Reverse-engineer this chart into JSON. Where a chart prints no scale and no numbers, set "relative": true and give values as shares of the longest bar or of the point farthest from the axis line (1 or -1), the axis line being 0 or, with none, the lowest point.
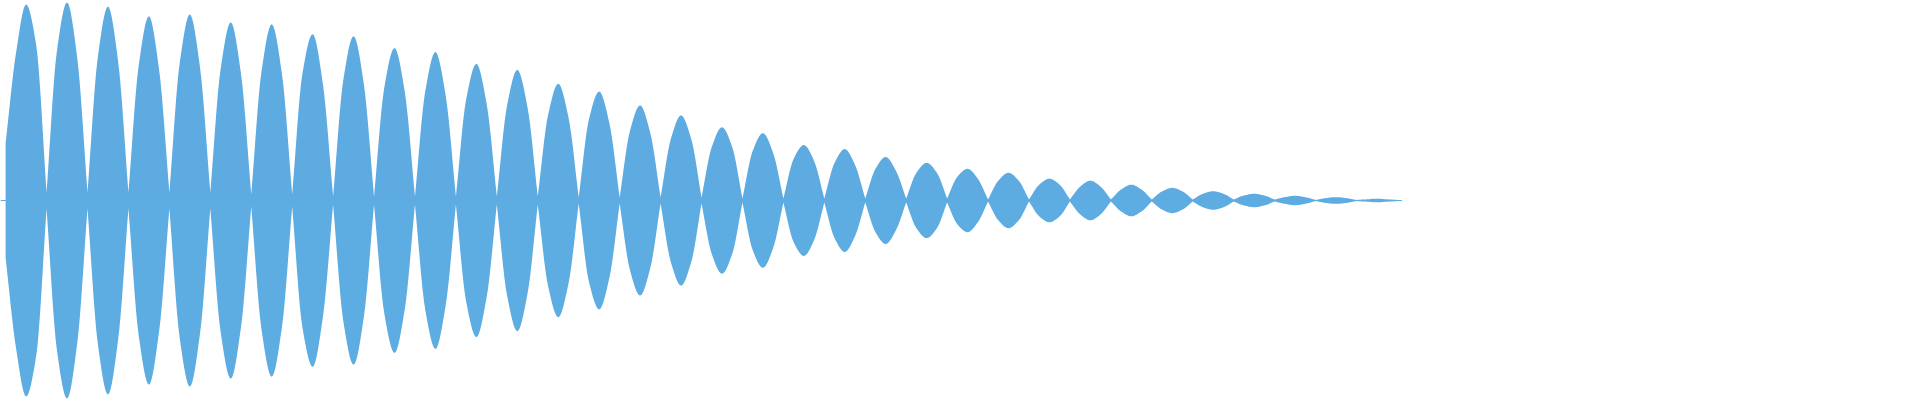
{
  "chart_data": {
    "type": "area",
    "relative": true,
    "categories": [
      null,
      null,
      null,
      null,
      null,
      null,
      null,
      null,
      null,
      null,
      null,
      null,
      null,
      null,
      null,
      null,
      null,
      null,
      null,
      null,
      null,
      null,
      null,
      null,
      null,
      null,
      null,
      null,
      null,
      null,
      null,
      null,
      null,
      null,
      null,
      null,
      null,
      null,
      null,
      null,
      null,
      null,
      null,
      null,
      null,
      null,
      null,
      null,
      null,
      null,
      null,
      null,
      null,
      null,
      null,
      null,
      null,
      null,
      null,
      null,
      null,
      null,
      null,
      null,
      null,
      null,
      null,
      null,
      null,
      null,
      null,
      null,
      null,
      null,
      null,
      null,
      null,
      null,
      null,
      null,
      null,
      null,
      null,
      null,
      null,
      null,
      null,
      null,
      null,
      null,
      null,
      null,
      null,
      null,
      null,
      null,
      null,
      null,
      null,
      null,
      null,
      null,
      null,
      null,
      null,
      null,
      null,
      null,
      null,
      null,
      null,
      null,
      null,
      null,
      null,
      null,
      null,
      null,
      null,
      null,
      null,
      null,
      null,
      null,
      null,
      null,
      null,
      null,
      null,
      null,
      null,
      null,
      null,
      null,
      null,
      null,
      null
    ],
    "ref_lines": [
      {
        "axis": "y",
        "value": 0,
        "color": "#5dabe1"
      }
    ],
    "series": [
      {
        "color": "#5dabe1",
        "values": [
          0.29,
          0.74,
          0.99,
          0.78,
          0.04,
          0.75,
          1.0,
          0.72,
          0.04,
          0.72,
          0.98,
          0.7,
          0.04,
          0.68,
          0.93,
          0.66,
          0.04,
          0.69,
          0.94,
          0.67,
          0.04,
          0.66,
          0.9,
          0.64,
          0.03,
          0.65,
          0.89,
          0.64,
          0.03,
          0.64,
          0.84,
          0.59,
          0.02,
          0.61,
          0.83,
          0.59,
          0.02,
          0.57,
          0.77,
          0.55,
          0.02,
          0.55,
          0.75,
          0.53,
          0.02,
          0.51,
          0.69,
          0.49,
          0.02,
          0.48,
          0.66,
          0.47,
          0.02,
          0.43,
          0.59,
          0.42,
          0.015,
          0.41,
          0.55,
          0.39,
          0.015,
          0.35,
          0.48,
          0.34,
          0.015,
          0.31,
          0.43,
          0.31,
          0.015,
          0.27,
          0.37,
          0.27,
          0.01,
          0.25,
          0.34,
          0.24,
          0.01,
          0.21,
          0.28,
          0.2,
          0.01,
          0.19,
          0.26,
          0.18,
          0.01,
          0.16,
          0.22,
          0.15,
          0.01,
          0.14,
          0.19,
          0.14,
          0.01,
          0.12,
          0.16,
          0.11,
          0.005,
          0.1,
          0.14,
          0.1,
          0.005,
          0.08,
          0.11,
          0.08,
          0.005,
          0.07,
          0.1,
          0.07,
          0.005,
          0.055,
          0.08,
          0.055,
          0.005,
          0.046,
          0.064,
          0.046,
          0.005,
          0.034,
          0.047,
          0.034,
          0.005,
          0.025,
          0.034,
          0.025,
          0.005,
          0.017,
          0.024,
          0.017,
          0.003,
          0.012,
          0.017,
          0.012,
          0.003,
          0.006,
          0.009,
          0.006,
          0.003
        ]
      },
      {
        "color": "#5dace2",
        "values": [
          -0.29,
          -0.74,
          -0.99,
          -0.78,
          -0.04,
          -0.75,
          -1.0,
          -0.72,
          -0.04,
          -0.72,
          -0.98,
          -0.7,
          -0.04,
          -0.68,
          -0.93,
          -0.66,
          -0.04,
          -0.69,
          -0.94,
          -0.67,
          -0.04,
          -0.66,
          -0.9,
          -0.64,
          -0.03,
          -0.65,
          -0.89,
          -0.64,
          -0.03,
          -0.64,
          -0.84,
          -0.59,
          -0.02,
          -0.61,
          -0.83,
          -0.59,
          -0.02,
          -0.57,
          -0.77,
          -0.55,
          -0.02,
          -0.55,
          -0.75,
          -0.53,
          -0.02,
          -0.51,
          -0.69,
          -0.49,
          -0.02,
          -0.48,
          -0.66,
          -0.47,
          -0.02,
          -0.43,
          -0.59,
          -0.42,
          -0.015,
          -0.41,
          -0.55,
          -0.39,
          -0.015,
          -0.35,
          -0.48,
          -0.34,
          -0.015,
          -0.31,
          -0.43,
          -0.31,
          -0.015,
          -0.27,
          -0.37,
          -0.27,
          -0.01,
          -0.25,
          -0.34,
          -0.24,
          -0.01,
          -0.21,
          -0.28,
          -0.2,
          -0.01,
          -0.19,
          -0.26,
          -0.18,
          -0.01,
          -0.16,
          -0.22,
          -0.15,
          -0.01,
          -0.14,
          -0.19,
          -0.14,
          -0.01,
          -0.12,
          -0.16,
          -0.11,
          -0.005,
          -0.1,
          -0.14,
          -0.1,
          -0.005,
          -0.08,
          -0.11,
          -0.08,
          -0.005,
          -0.07,
          -0.1,
          -0.07,
          -0.005,
          -0.055,
          -0.08,
          -0.055,
          -0.005,
          -0.046,
          -0.064,
          -0.046,
          -0.005,
          -0.034,
          -0.047,
          -0.034,
          -0.005,
          -0.025,
          -0.034,
          -0.025,
          -0.005,
          -0.017,
          -0.024,
          -0.017,
          -0.003,
          -0.012,
          -0.017,
          -0.012,
          -0.003,
          -0.006,
          -0.009,
          -0.006,
          -0.003
        ]
      }
    ]
  }
}
